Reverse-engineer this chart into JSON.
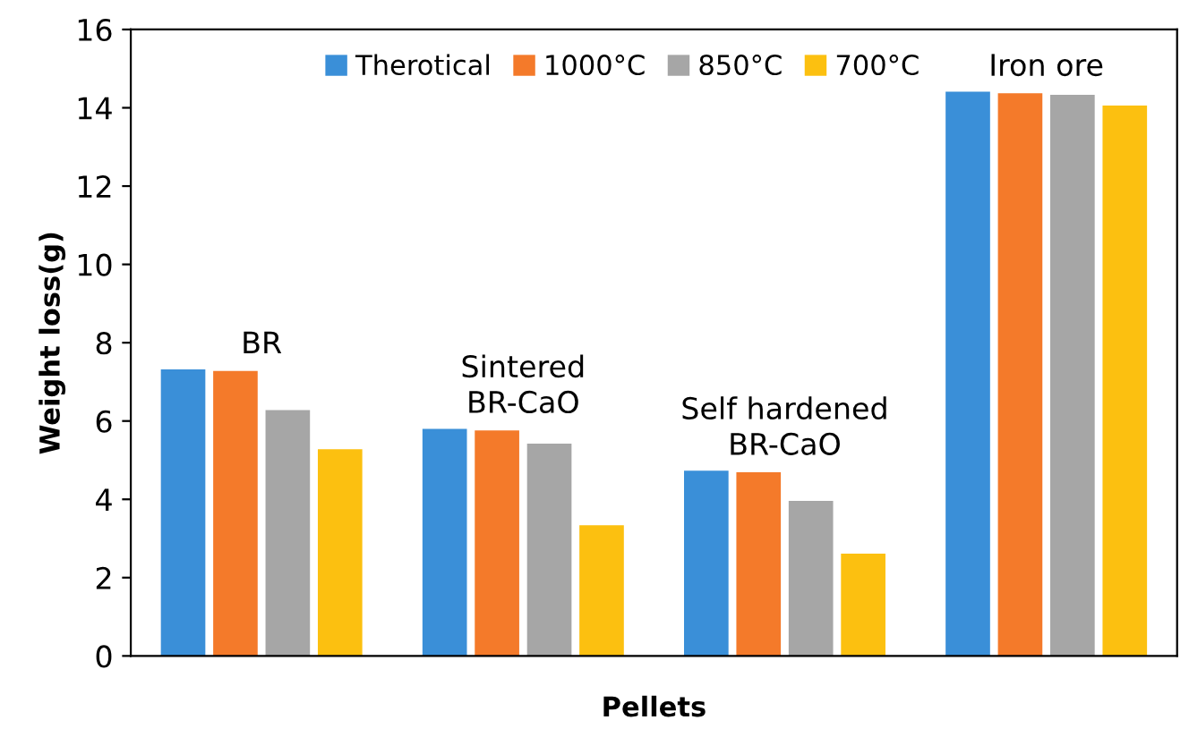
{
  "chart_data": {
    "type": "bar",
    "xlabel": "Pellets",
    "ylabel": "Weight loss(g)",
    "categories": [
      "BR",
      "Sintered\nBR-CaO",
      "Self hardened\nBR-CaO",
      "Iron ore"
    ],
    "series": [
      {
        "name": "Therotical",
        "color": "#3a8fd8",
        "values": [
          7.32,
          5.8,
          4.73,
          14.41
        ]
      },
      {
        "name": "1000°C",
        "color": "#f47a2a",
        "values": [
          7.28,
          5.76,
          4.69,
          14.37
        ]
      },
      {
        "name": "850°C",
        "color": "#a6a6a6",
        "values": [
          6.28,
          5.42,
          3.96,
          14.33
        ]
      },
      {
        "name": "700°C",
        "color": "#fcc010",
        "values": [
          5.28,
          3.34,
          2.61,
          14.06
        ]
      }
    ],
    "ylim": [
      0,
      16
    ],
    "yticks": [
      0,
      2,
      4,
      6,
      8,
      10,
      12,
      14,
      16
    ],
    "grid": false,
    "legend": "top",
    "tick_labels": "y"
  }
}
